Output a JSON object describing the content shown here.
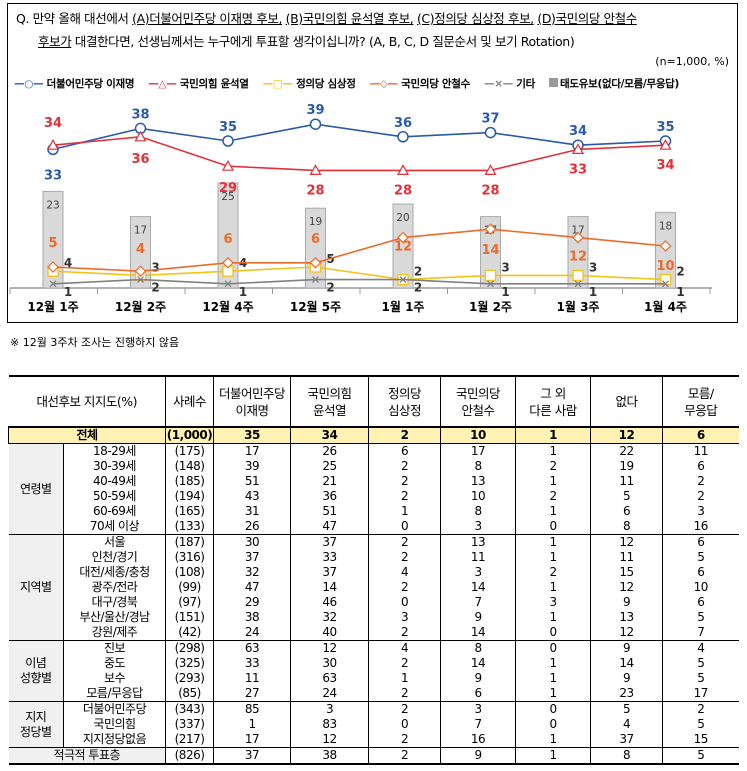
{
  "question": {
    "prefix": "Q. 만약 올해 대선에서 ",
    "a": "(A)더불어민주당 이재명 후보,",
    "b": "(B)국민의힘 윤석열 후보,",
    "c": "(C)정의당 심상정 후보,",
    "d": "(D)국민의당 안철수",
    "line2_u": "후보가",
    "line2": " 대결한다면, 선생님께서는 누구에게 투표할 생각이십니까? (A, B, C, D 질문순서 및 보기 Rotation)",
    "sample": "(n=1,000, %)"
  },
  "chart_data": {
    "type": "line",
    "categories": [
      "12월 1주",
      "12월 2주",
      "12월 4주",
      "12월 5주",
      "1월 1주",
      "1월 2주",
      "1월 3주",
      "1월 4주"
    ],
    "ylim": [
      0,
      70
    ],
    "grid": false,
    "legend_placement": "top",
    "series": [
      {
        "name": "더불어민주당 이재명",
        "type": "line",
        "marker": "circle",
        "color": "#2a5aa8",
        "values": [
          33,
          38,
          35,
          39,
          36,
          37,
          34,
          35
        ]
      },
      {
        "name": "국민의힘 윤석열",
        "type": "line",
        "marker": "triangle",
        "color": "#e0303a",
        "values": [
          34,
          36,
          29,
          28,
          28,
          28,
          33,
          34
        ]
      },
      {
        "name": "정의당 심상정",
        "type": "line",
        "marker": "square",
        "color": "#f2c318",
        "values": [
          4,
          3,
          4,
          5,
          2,
          3,
          3,
          2
        ]
      },
      {
        "name": "국민의당 안철수",
        "type": "line",
        "marker": "diamond",
        "color": "#ec6a2a",
        "values": [
          5,
          4,
          6,
          6,
          12,
          14,
          12,
          10
        ]
      },
      {
        "name": "기타",
        "type": "line",
        "marker": "x",
        "color": "#808080",
        "values": [
          1,
          2,
          1,
          2,
          2,
          1,
          1,
          1
        ]
      },
      {
        "name": "태도유보(없다/모름/무응답)",
        "type": "bar",
        "color": "#d9d9d9",
        "values": [
          23,
          17,
          25,
          19,
          20,
          17,
          17,
          18
        ]
      }
    ]
  },
  "note": "※ 12월 3주차 조사는 진행하지 않음",
  "table": {
    "header": [
      "대선후보 지지도(%)",
      "사례수",
      "더불어민주당\n이재명",
      "국민의힘\n윤석열",
      "정의당\n심상정",
      "국민의당\n안철수",
      "그 외\n다른 사람",
      "없다",
      "모름/\n무응답"
    ],
    "total": {
      "label": "전체",
      "values": [
        "(1,000)",
        "35",
        "34",
        "2",
        "10",
        "1",
        "12",
        "6"
      ]
    },
    "groups": [
      {
        "label": "연령별",
        "rows": [
          {
            "label": "18-29세",
            "values": [
              "(175)",
              "17",
              "26",
              "6",
              "17",
              "1",
              "22",
              "11"
            ]
          },
          {
            "label": "30-39세",
            "values": [
              "(148)",
              "39",
              "25",
              "2",
              "8",
              "2",
              "19",
              "6"
            ]
          },
          {
            "label": "40-49세",
            "values": [
              "(185)",
              "51",
              "21",
              "2",
              "13",
              "1",
              "11",
              "2"
            ]
          },
          {
            "label": "50-59세",
            "values": [
              "(194)",
              "43",
              "36",
              "2",
              "10",
              "2",
              "5",
              "2"
            ]
          },
          {
            "label": "60-69세",
            "values": [
              "(165)",
              "31",
              "51",
              "1",
              "8",
              "1",
              "6",
              "3"
            ]
          },
          {
            "label": "70세 이상",
            "values": [
              "(133)",
              "26",
              "47",
              "0",
              "3",
              "0",
              "8",
              "16"
            ]
          }
        ]
      },
      {
        "label": "지역별",
        "rows": [
          {
            "label": "서울",
            "values": [
              "(187)",
              "30",
              "37",
              "2",
              "13",
              "1",
              "12",
              "6"
            ]
          },
          {
            "label": "인천/경기",
            "values": [
              "(316)",
              "37",
              "33",
              "2",
              "11",
              "1",
              "11",
              "5"
            ]
          },
          {
            "label": "대전/세종/충청",
            "values": [
              "(108)",
              "32",
              "37",
              "4",
              "3",
              "2",
              "15",
              "6"
            ]
          },
          {
            "label": "광주/전라",
            "values": [
              "(99)",
              "47",
              "14",
              "2",
              "14",
              "1",
              "12",
              "10"
            ]
          },
          {
            "label": "대구/경북",
            "values": [
              "(97)",
              "29",
              "46",
              "0",
              "7",
              "3",
              "9",
              "6"
            ]
          },
          {
            "label": "부산/울산/경남",
            "values": [
              "(151)",
              "38",
              "32",
              "3",
              "9",
              "1",
              "13",
              "5"
            ]
          },
          {
            "label": "강원/제주",
            "values": [
              "(42)",
              "24",
              "40",
              "2",
              "14",
              "0",
              "12",
              "7"
            ]
          }
        ]
      },
      {
        "label": "이념\n성향별",
        "rows": [
          {
            "label": "진보",
            "values": [
              "(298)",
              "63",
              "12",
              "4",
              "8",
              "0",
              "9",
              "4"
            ]
          },
          {
            "label": "중도",
            "values": [
              "(325)",
              "33",
              "30",
              "2",
              "14",
              "1",
              "14",
              "5"
            ]
          },
          {
            "label": "보수",
            "values": [
              "(293)",
              "11",
              "63",
              "1",
              "9",
              "1",
              "9",
              "5"
            ]
          },
          {
            "label": "모름/무응답",
            "values": [
              "(85)",
              "27",
              "24",
              "2",
              "6",
              "1",
              "23",
              "17"
            ]
          }
        ]
      },
      {
        "label": "지지\n정당별",
        "rows": [
          {
            "label": "더불어민주당",
            "values": [
              "(343)",
              "85",
              "3",
              "2",
              "3",
              "0",
              "5",
              "2"
            ]
          },
          {
            "label": "국민의힘",
            "values": [
              "(337)",
              "1",
              "83",
              "0",
              "7",
              "0",
              "4",
              "5"
            ]
          },
          {
            "label": "지지정당없음",
            "values": [
              "(217)",
              "17",
              "12",
              "2",
              "16",
              "1",
              "37",
              "15"
            ]
          }
        ]
      }
    ],
    "footer": {
      "label": "적극적 투표층",
      "values": [
        "(826)",
        "37",
        "38",
        "2",
        "9",
        "1",
        "8",
        "5"
      ]
    }
  }
}
